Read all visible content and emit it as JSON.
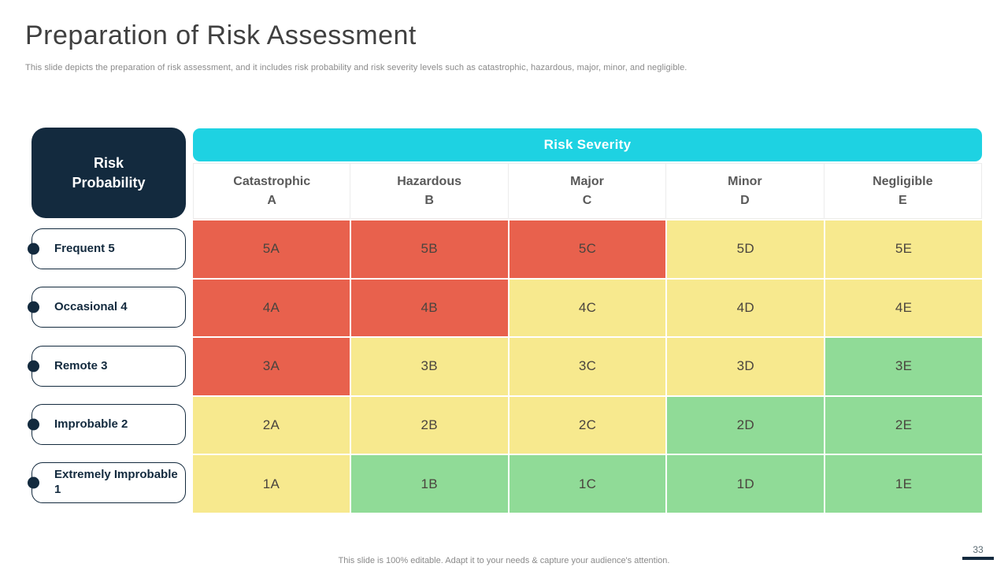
{
  "slide": {
    "title": "Preparation of Risk Assessment",
    "subtitle": "This slide depicts the preparation of risk assessment, and it includes risk probability and risk severity levels such as catastrophic, hazardous, major, minor, and negligible.",
    "footer": "This slide is 100% editable. Adapt it to your needs & capture your audience's attention.",
    "page_number": "33"
  },
  "matrix": {
    "corner_label": "Risk\nProbability",
    "severity_header": "Risk Severity",
    "columns": [
      {
        "name": "Catastrophic",
        "code": "A"
      },
      {
        "name": "Hazardous",
        "code": "B"
      },
      {
        "name": "Major",
        "code": "C"
      },
      {
        "name": "Minor",
        "code": "D"
      },
      {
        "name": "Negligible",
        "code": "E"
      }
    ],
    "rows": [
      {
        "label": "Frequent 5",
        "cells": [
          {
            "text": "5A",
            "level": "red"
          },
          {
            "text": "5B",
            "level": "red"
          },
          {
            "text": "5C",
            "level": "red"
          },
          {
            "text": "5D",
            "level": "yellow"
          },
          {
            "text": "5E",
            "level": "yellow"
          }
        ]
      },
      {
        "label": "Occasional 4",
        "cells": [
          {
            "text": "4A",
            "level": "red"
          },
          {
            "text": "4B",
            "level": "red"
          },
          {
            "text": "4C",
            "level": "yellow"
          },
          {
            "text": "4D",
            "level": "yellow"
          },
          {
            "text": "4E",
            "level": "yellow"
          }
        ]
      },
      {
        "label": "Remote 3",
        "cells": [
          {
            "text": "3A",
            "level": "red"
          },
          {
            "text": "3B",
            "level": "yellow"
          },
          {
            "text": "3C",
            "level": "yellow"
          },
          {
            "text": "3D",
            "level": "yellow"
          },
          {
            "text": "3E",
            "level": "green"
          }
        ]
      },
      {
        "label": "Improbable 2",
        "cells": [
          {
            "text": "2A",
            "level": "yellow"
          },
          {
            "text": "2B",
            "level": "yellow"
          },
          {
            "text": "2C",
            "level": "yellow"
          },
          {
            "text": "2D",
            "level": "green"
          },
          {
            "text": "2E",
            "level": "green"
          }
        ]
      },
      {
        "label": "Extremely Improbable 1",
        "cells": [
          {
            "text": "1A",
            "level": "yellow"
          },
          {
            "text": "1B",
            "level": "green"
          },
          {
            "text": "1C",
            "level": "green"
          },
          {
            "text": "1D",
            "level": "green"
          },
          {
            "text": "1E",
            "level": "green"
          }
        ]
      }
    ]
  },
  "colors": {
    "red": "#E8614D",
    "yellow": "#F7E98E",
    "green": "#90DB97",
    "cyan": "#1ED2E2",
    "navy": "#132A3E"
  },
  "layout_rows": {
    "tops": [
      290,
      364,
      439,
      513,
      587
    ]
  }
}
